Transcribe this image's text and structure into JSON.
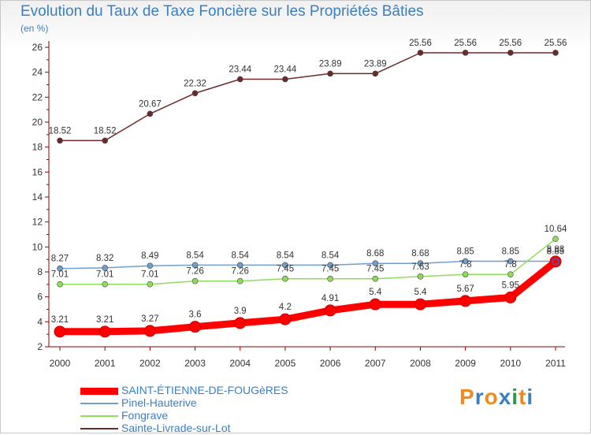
{
  "header": {
    "title": "Evolution du Taux de Taxe Foncière sur les Propriétés Bâties",
    "subtitle": "(en %)"
  },
  "logo": {
    "text": "Proxiti",
    "colors": [
      "#f08a1c",
      "#3a7fc2",
      "#f08a1c",
      "#3a7fc2",
      "#2a9a4a",
      "#f08a1c",
      "#3a7fc2"
    ]
  },
  "colors": {
    "accent": "#3a7fc2",
    "axis": "#8b0000"
  },
  "chart_data": {
    "type": "line",
    "title": "Evolution du Taux de Taxe Foncière sur les Propriétés Bâties",
    "ylabel": "(en %)",
    "xlabel": "",
    "x": [
      2000,
      2001,
      2002,
      2003,
      2004,
      2005,
      2006,
      2007,
      2008,
      2009,
      2010,
      2011
    ],
    "ylim": [
      2,
      26
    ],
    "yticks": [
      2,
      4,
      6,
      8,
      10,
      12,
      14,
      16,
      18,
      20,
      22,
      24,
      26
    ],
    "grid": false,
    "legend_position": "bottom-left",
    "series": [
      {
        "name": "SAINT-ÉTIENNE-DE-FOUGèRES",
        "color": "#ff0000",
        "values": [
          3.21,
          3.21,
          3.27,
          3.6,
          3.9,
          4.2,
          4.91,
          5.4,
          5.4,
          5.67,
          5.95,
          8.83
        ],
        "labels": [
          "3.21",
          "3.21",
          "3.27",
          "3.6",
          "3.9",
          "4.2",
          "4.91",
          "5.4",
          "5.4",
          "5.67",
          "5.95",
          "8.83"
        ]
      },
      {
        "name": "Pinel-Hauterive",
        "color": "#6f9fca",
        "values": [
          8.27,
          8.32,
          8.49,
          8.54,
          8.54,
          8.54,
          8.54,
          8.68,
          8.68,
          8.85,
          8.85,
          8.85
        ],
        "labels": [
          "8.27",
          "8.32",
          "8.49",
          "8.54",
          "8.54",
          "8.54",
          "8.54",
          "8.68",
          "8.68",
          "8.85",
          "8.85",
          "8.85"
        ]
      },
      {
        "name": "Fongrave",
        "color": "#8fdc5a",
        "values": [
          7.01,
          7.01,
          7.01,
          7.26,
          7.26,
          7.45,
          7.45,
          7.45,
          7.63,
          7.8,
          7.8,
          10.64
        ],
        "labels": [
          "7.01",
          "7.01",
          "7.01",
          "7.26",
          "7.26",
          "7.45",
          "7.45",
          "7.45",
          "7.63",
          "7.8",
          "7.8",
          "10.64"
        ]
      },
      {
        "name": "Sainte-Livrade-sur-Lot",
        "color": "#6b2a2a",
        "values": [
          18.52,
          18.52,
          20.67,
          22.32,
          23.44,
          23.44,
          23.89,
          23.89,
          25.56,
          25.56,
          25.56,
          25.56
        ],
        "labels": [
          "18.52",
          "18.52",
          "20.67",
          "22.32",
          "23.44",
          "23.44",
          "23.89",
          "23.89",
          "25.56",
          "25.56",
          "25.56",
          "25.56"
        ]
      }
    ]
  }
}
